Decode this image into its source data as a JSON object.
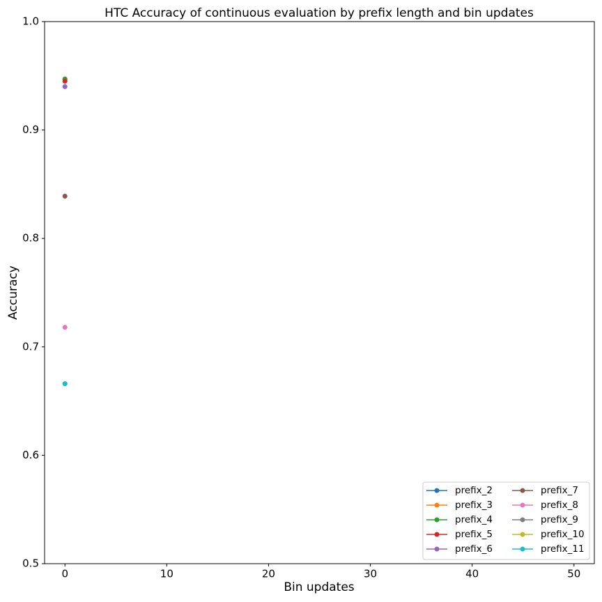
{
  "chart_data": {
    "type": "line",
    "title": "HTC Accuracy of continuous evaluation by prefix length and bin updates",
    "x_label": "Bin updates",
    "y_label": "Accuracy",
    "x": [
      0
    ],
    "series": [
      {
        "name": "prefix_2",
        "color": "#1f77b4",
        "values": [
          0.947
        ]
      },
      {
        "name": "prefix_3",
        "color": "#ff7f0e",
        "values": [
          0.947
        ]
      },
      {
        "name": "prefix_4",
        "color": "#2ca02c",
        "values": [
          0.947
        ]
      },
      {
        "name": "prefix_5",
        "color": "#d62728",
        "values": [
          0.945
        ]
      },
      {
        "name": "prefix_6",
        "color": "#9467bd",
        "values": [
          0.94
        ]
      },
      {
        "name": "prefix_7",
        "color": "#8c564b",
        "values": [
          0.839
        ]
      },
      {
        "name": "prefix_8",
        "color": "#e377c2",
        "values": [
          0.718
        ]
      },
      {
        "name": "prefix_9",
        "color": "#7f7f7f",
        "values": [
          0.666
        ]
      },
      {
        "name": "prefix_10",
        "color": "#bcbd22",
        "values": [
          0.666
        ]
      },
      {
        "name": "prefix_11",
        "color": "#17becf",
        "values": [
          0.666
        ]
      }
    ],
    "xlim": [
      -2,
      52
    ],
    "xticks": [
      0,
      10,
      20,
      30,
      40,
      50
    ],
    "ylim": [
      0.5,
      1
    ],
    "yticks": [
      0.5,
      0.6,
      0.7,
      0.8,
      0.9,
      {
        "value": 1,
        "label": "1.0"
      }
    ],
    "grid": false,
    "legend": "lower right",
    "legend_columns": 2
  }
}
